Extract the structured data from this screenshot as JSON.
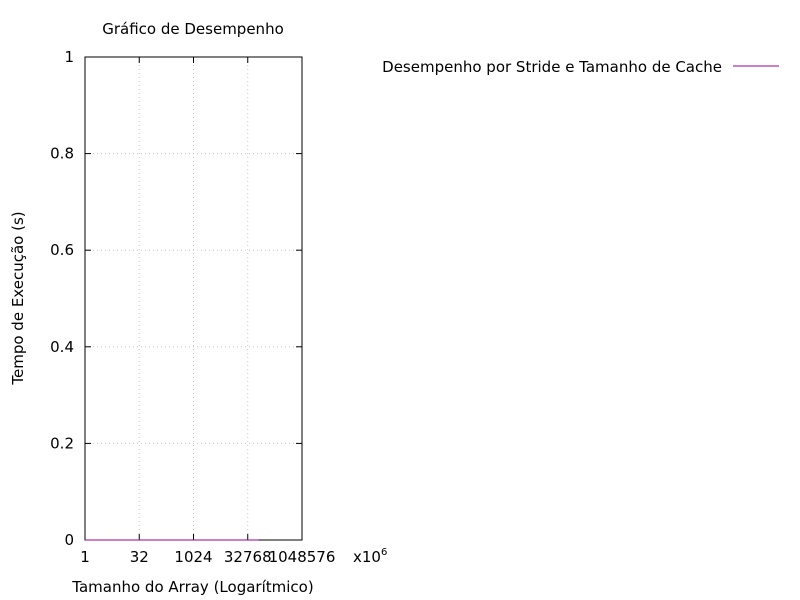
{
  "chart_data": {
    "type": "line",
    "title": "Gráfico de Desempenho",
    "xlabel": "Tamanho do Array (Logarítmico)",
    "ylabel": "Tempo de Execução (s)",
    "xscale": "log2",
    "xlim": [
      1,
      1048576
    ],
    "ylim": [
      0,
      1
    ],
    "grid": true,
    "legend_position": "top-right",
    "x_ticks": [
      "1",
      "32",
      "1024",
      "32768",
      "1048576"
    ],
    "x_tick_overflow_label": "x10",
    "x_tick_overflow_exponent": "6",
    "y_ticks": [
      "0",
      "0.2",
      "0.4",
      "0.6",
      "0.8",
      "1"
    ],
    "series": [
      {
        "name": "Desempenho por Stride e Tamanho de Cache",
        "color": "#940094",
        "x": [
          1,
          4,
          16,
          64,
          256,
          1024,
          4096,
          16384,
          65536
        ],
        "y": [
          0,
          0,
          0,
          0,
          0,
          0,
          0,
          0,
          0
        ]
      }
    ]
  }
}
